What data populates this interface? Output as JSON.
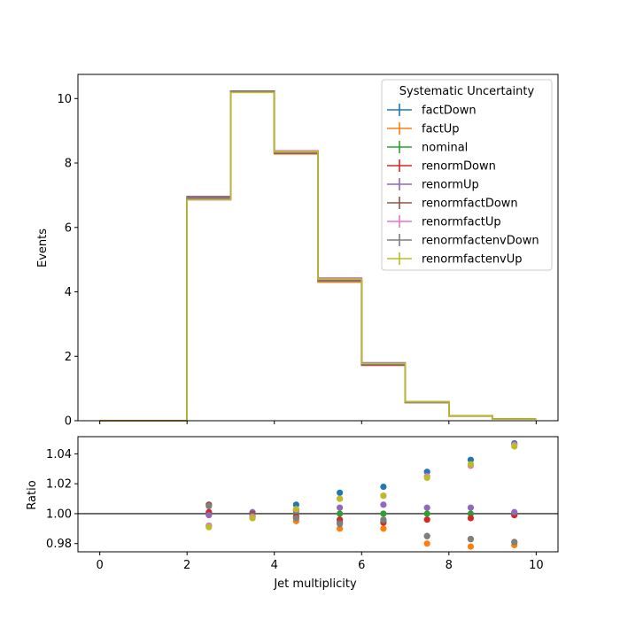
{
  "chart_data": [
    {
      "type": "line",
      "style": "step",
      "ylabel": "Events",
      "xlim": [
        -0.5,
        10.5
      ],
      "ylim": [
        0,
        10.75
      ],
      "yticks": [
        0,
        2,
        4,
        6,
        8,
        10
      ],
      "xticks": [
        0,
        2,
        4,
        6,
        8,
        10
      ],
      "bin_edges": [
        0,
        1,
        2,
        3,
        4,
        5,
        6,
        7,
        8,
        9,
        10
      ],
      "legend": {
        "title": "Systematic Uncertainty",
        "position": "top-right"
      },
      "series": [
        {
          "name": "factDown",
          "color": "#1f77b4",
          "values": [
            0,
            0,
            6.86,
            10.2,
            8.33,
            4.39,
            1.78,
            0.59,
            0.15,
            0.05
          ]
        },
        {
          "name": "factUp",
          "color": "#ff7f0e",
          "values": [
            0,
            0,
            6.95,
            10.22,
            8.28,
            4.3,
            1.73,
            0.56,
            0.14,
            0.05
          ]
        },
        {
          "name": "nominal",
          "color": "#2ca02c",
          "values": [
            0,
            0,
            6.91,
            10.22,
            8.37,
            4.43,
            1.77,
            0.58,
            0.15,
            0.05
          ]
        },
        {
          "name": "renormDown",
          "color": "#d62728",
          "values": [
            0,
            0,
            6.91,
            10.22,
            8.36,
            4.39,
            1.72,
            0.57,
            0.15,
            0.05
          ]
        },
        {
          "name": "renormUp",
          "color": "#9467bd",
          "values": [
            0,
            0,
            6.9,
            10.23,
            8.35,
            4.37,
            1.8,
            0.58,
            0.15,
            0.05
          ]
        },
        {
          "name": "renormfactDown",
          "color": "#8c564b",
          "values": [
            0,
            0,
            6.96,
            10.23,
            8.3,
            4.36,
            1.74,
            0.57,
            0.15,
            0.05
          ]
        },
        {
          "name": "renormfactUp",
          "color": "#e377c2",
          "values": [
            0,
            0,
            6.86,
            10.21,
            8.38,
            4.43,
            1.78,
            0.59,
            0.15,
            0.05
          ]
        },
        {
          "name": "renormfactenvDown",
          "color": "#7f7f7f",
          "values": [
            0,
            0,
            6.95,
            10.21,
            8.32,
            4.33,
            1.74,
            0.57,
            0.15,
            0.05
          ]
        },
        {
          "name": "renormfactenvUp",
          "color": "#bcbd22",
          "values": [
            0,
            0,
            6.86,
            10.19,
            8.35,
            4.39,
            1.78,
            0.59,
            0.15,
            0.05
          ]
        }
      ]
    },
    {
      "type": "scatter",
      "xlabel": "Jet multiplicity",
      "ylabel": "Ratio",
      "xlim": [
        -0.5,
        10.5
      ],
      "ylim": [
        0.9745,
        1.0515
      ],
      "yticks": [
        0.98,
        1.0,
        1.02,
        1.04
      ],
      "yticklabels": [
        "0.98",
        "1.00",
        "1.02",
        "1.04"
      ],
      "xticks": [
        0,
        2,
        4,
        6,
        8,
        10
      ],
      "reference_line": 1.0,
      "x": [
        2.5,
        3.5,
        4.5,
        5.5,
        6.5,
        7.5,
        8.5,
        9.5
      ],
      "series": [
        {
          "name": "factDown",
          "color": "#1f77b4",
          "values": [
            0.992,
            0.998,
            1.006,
            1.014,
            1.018,
            1.028,
            1.036,
            1.047
          ]
        },
        {
          "name": "factUp",
          "color": "#ff7f0e",
          "values": [
            1.006,
            1.0,
            0.995,
            0.99,
            0.99,
            0.98,
            0.978,
            0.979
          ]
        },
        {
          "name": "nominal",
          "color": "#2ca02c",
          "values": [
            1.0,
            1.0,
            1.0,
            1.0,
            1.0,
            1.0,
            1.0,
            1.0
          ]
        },
        {
          "name": "renormDown",
          "color": "#d62728",
          "values": [
            1.001,
            1.0,
            0.998,
            0.996,
            0.994,
            0.996,
            0.997,
            0.999
          ]
        },
        {
          "name": "renormUp",
          "color": "#9467bd",
          "values": [
            0.999,
            1.001,
            1.002,
            1.004,
            1.006,
            1.004,
            1.004,
            1.001
          ]
        },
        {
          "name": "renormfactDown",
          "color": "#8c564b",
          "values": [
            1.006,
            1.0,
            0.997,
            0.994,
            0.995,
            0.985,
            0.983,
            0.981
          ]
        },
        {
          "name": "renormfactUp",
          "color": "#e377c2",
          "values": [
            0.992,
            0.998,
            1.003,
            1.01,
            1.012,
            1.025,
            1.032,
            1.046
          ]
        },
        {
          "name": "renormfactenvDown",
          "color": "#7f7f7f",
          "values": [
            1.005,
            0.997,
            0.997,
            0.993,
            0.996,
            0.985,
            0.983,
            0.981
          ]
        },
        {
          "name": "renormfactenvUp",
          "color": "#bcbd22",
          "values": [
            0.991,
            0.997,
            1.003,
            1.01,
            1.012,
            1.024,
            1.033,
            1.045
          ]
        }
      ]
    }
  ]
}
